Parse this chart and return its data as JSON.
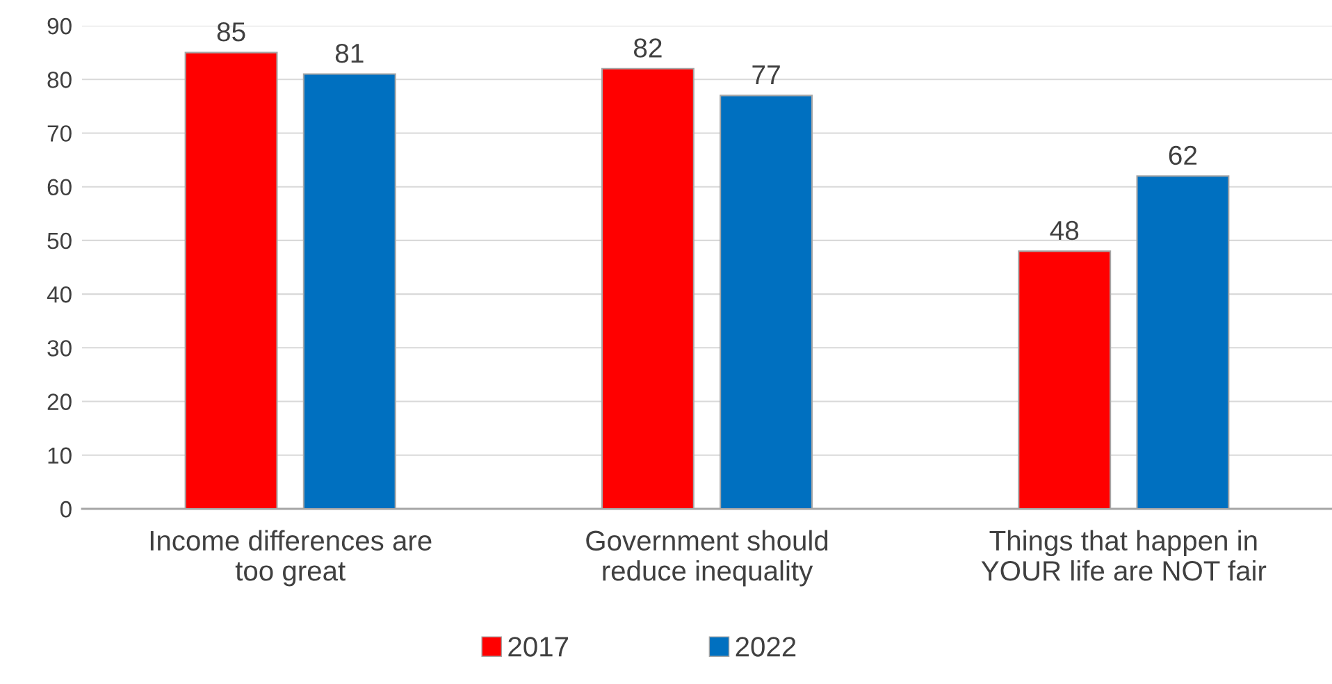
{
  "chart_data": {
    "type": "bar",
    "categories": [
      "Income differences are\ntoo great",
      "Government should\nreduce inequality",
      "Things that happen in\nYOUR life are NOT fair"
    ],
    "series": [
      {
        "name": "2017",
        "color": "#ff0000",
        "values": [
          85,
          82,
          48
        ]
      },
      {
        "name": "2022",
        "color": "#0070c0",
        "values": [
          81,
          77,
          62
        ]
      }
    ],
    "ylim": [
      0,
      90
    ],
    "yticks": [
      0,
      10,
      20,
      30,
      40,
      50,
      60,
      70,
      80,
      90
    ],
    "grid": "y",
    "legend": "bottom",
    "data_labels": true
  }
}
